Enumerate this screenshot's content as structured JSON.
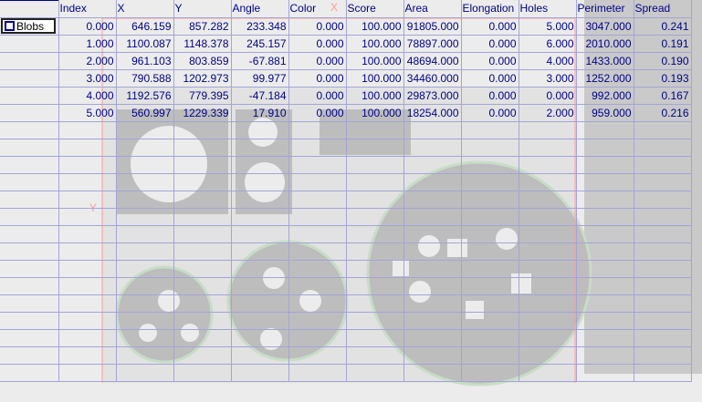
{
  "tree": {
    "root_label": "Blobs",
    "root_icon": "square-node-icon"
  },
  "columns": [
    "Index",
    "X",
    "Y",
    "Angle",
    "Color",
    "Score",
    "Area",
    "Elongation",
    "Holes",
    "Perimeter",
    "Spread"
  ],
  "rows": [
    [
      "0.000",
      "646.159",
      "857.282",
      "233.348",
      "0.000",
      "100.000",
      "91805.000",
      "0.000",
      "5.000",
      "3047.000",
      "0.241"
    ],
    [
      "1.000",
      "1100.087",
      "1148.378",
      "245.157",
      "0.000",
      "100.000",
      "78897.000",
      "0.000",
      "6.000",
      "2010.000",
      "0.191"
    ],
    [
      "2.000",
      "961.103",
      "803.859",
      "-67.881",
      "0.000",
      "100.000",
      "48694.000",
      "0.000",
      "4.000",
      "1433.000",
      "0.190"
    ],
    [
      "3.000",
      "790.588",
      "1202.973",
      "99.977",
      "0.000",
      "100.000",
      "34460.000",
      "0.000",
      "3.000",
      "1252.000",
      "0.193"
    ],
    [
      "4.000",
      "1192.576",
      "779.395",
      "-47.184",
      "0.000",
      "100.000",
      "29873.000",
      "0.000",
      "0.000",
      "992.000",
      "0.167"
    ],
    [
      "5.000",
      "560.997",
      "1229.339",
      "17.910",
      "0.000",
      "100.000",
      "18254.000",
      "0.000",
      "2.000",
      "959.000",
      "0.216"
    ]
  ],
  "background": {
    "axis_x_label": "X",
    "axis_y_label": "Y"
  },
  "colors": {
    "text": "#00008b",
    "grid": "#a4a4d8",
    "axis": "#ff6666"
  }
}
